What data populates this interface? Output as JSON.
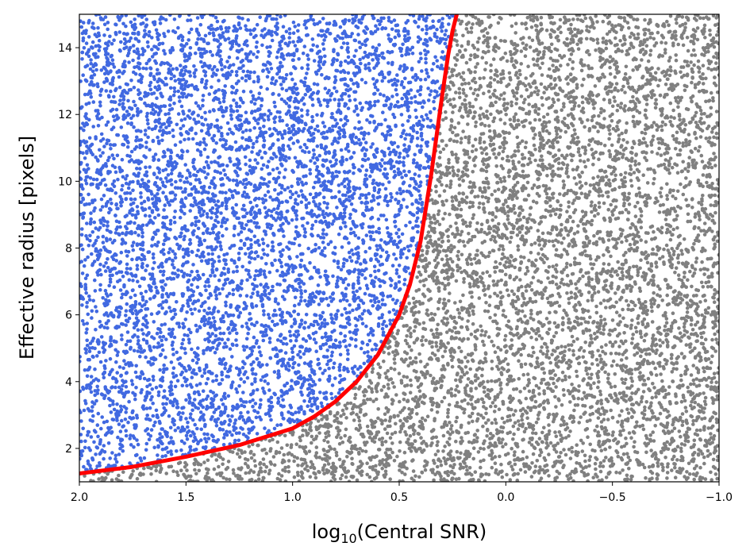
{
  "chart_data": {
    "type": "scatter",
    "xlabel_prefix": "log",
    "xlabel_sub": "10",
    "xlabel_rest": "(Central SNR)",
    "ylabel": "Effective radius [pixels]",
    "xlim": [
      2.0,
      -1.0
    ],
    "ylim": [
      1.0,
      15.0
    ],
    "x_inverted": true,
    "x_ticks": [
      2.0,
      1.5,
      1.0,
      0.5,
      0.0,
      -0.5,
      -1.0
    ],
    "x_tick_labels": [
      "2.0",
      "1.5",
      "1.0",
      "0.5",
      "0.0",
      "−0.5",
      "−1.0"
    ],
    "y_ticks": [
      2,
      4,
      6,
      8,
      10,
      12,
      14
    ],
    "y_tick_labels": [
      "2",
      "4",
      "6",
      "8",
      "10",
      "12",
      "14"
    ],
    "grid": false,
    "series": [
      {
        "color": "#4169e1",
        "region": "left of boundary curve",
        "approx_count": 6000,
        "x_range": [
          2.0,
          -1.0
        ],
        "y_range": [
          1.0,
          15.0
        ]
      },
      {
        "color": "#808080",
        "region": "right of boundary curve",
        "approx_count": 6500,
        "x_range": [
          2.0,
          -1.0
        ],
        "y_range": [
          1.0,
          15.0
        ]
      }
    ],
    "boundary_curve": {
      "color": "#ff0000",
      "x": [
        2.0,
        1.75,
        1.5,
        1.25,
        1.0,
        0.9,
        0.8,
        0.7,
        0.6,
        0.5,
        0.45,
        0.4,
        0.35,
        0.3,
        0.27,
        0.25,
        0.23
      ],
      "y": [
        1.25,
        1.45,
        1.75,
        2.1,
        2.6,
        2.95,
        3.4,
        4.0,
        4.8,
        6.0,
        6.9,
        8.2,
        10.2,
        12.5,
        13.8,
        14.5,
        15.0
      ]
    }
  }
}
